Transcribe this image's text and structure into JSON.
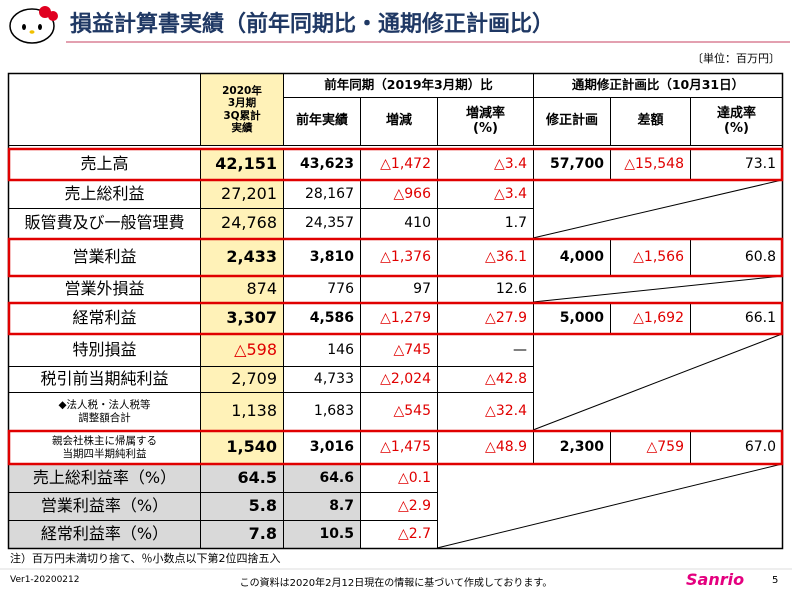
{
  "header": {
    "title": "損益計算書実績（前年同期比・通期修正計画比）",
    "unit": "〔単位：百万円〕"
  },
  "table": {
    "groups": [
      "前年同期（2019年3月期）比",
      "通期修正計画比（10月31日）"
    ],
    "columns": [
      "2020年\n3月期\n3Q累計\n実績",
      "前年実績",
      "増減",
      "増減率\n(%)",
      "修正計画",
      "差額",
      "達成率\n(%)"
    ],
    "rows": [
      {
        "label": "売上高",
        "cells": [
          "42,151",
          "43,623",
          "△1,472",
          "△3.4",
          "57,700",
          "△15,548",
          "73.1"
        ]
      },
      {
        "label": "売上総利益",
        "cells": [
          "27,201",
          "28,167",
          "△966",
          "△3.4",
          null,
          null,
          null
        ]
      },
      {
        "label": "販管費及び一般管理費",
        "cells": [
          "24,768",
          "24,357",
          "410",
          "1.7",
          null,
          null,
          null
        ]
      },
      {
        "label": "営業利益",
        "cells": [
          "2,433",
          "3,810",
          "△1,376",
          "△36.1",
          "4,000",
          "△1,566",
          "60.8"
        ]
      },
      {
        "label": "営業外損益",
        "cells": [
          "874",
          "776",
          "97",
          "12.6",
          null,
          null,
          null
        ]
      },
      {
        "label": "経常利益",
        "cells": [
          "3,307",
          "4,586",
          "△1,279",
          "△27.9",
          "5,000",
          "△1,692",
          "66.1"
        ]
      },
      {
        "label": "特別損益",
        "cells": [
          "△598",
          "146",
          "△745",
          "—",
          null,
          null,
          null
        ]
      },
      {
        "label": "税引前当期純利益",
        "cells": [
          "2,709",
          "4,733",
          "△2,024",
          "△42.8",
          null,
          null,
          null
        ]
      },
      {
        "label": "◆法人税・法人税等\n調整額合計",
        "cells": [
          "1,138",
          "1,683",
          "△545",
          "△32.4",
          null,
          null,
          null
        ]
      },
      {
        "label": "親会社株主に帰属する\n当期四半期純利益",
        "cells": [
          "1,540",
          "3,016",
          "△1,475",
          "△48.9",
          "2,300",
          "△759",
          "67.0"
        ]
      },
      {
        "label": "売上総利益率（%）",
        "cells": [
          "64.5",
          "64.6",
          "△0.1",
          null,
          null,
          null,
          null
        ]
      },
      {
        "label": "営業利益率（%）",
        "cells": [
          "5.8",
          "8.7",
          "△2.9",
          null,
          null,
          null,
          null
        ]
      },
      {
        "label": "経常利益率（%）",
        "cells": [
          "7.8",
          "10.5",
          "△2.7",
          null,
          null,
          null,
          null
        ]
      }
    ]
  },
  "notes": "注）百万円未満切り捨て、％小数点以下第2位四捨五入",
  "footer": {
    "version": "Ver1-20200212",
    "disclaimer": "この資料は2020年2月12日現在の情報に基づいて作成しております。",
    "logo": "Sanrio",
    "page": "5"
  }
}
